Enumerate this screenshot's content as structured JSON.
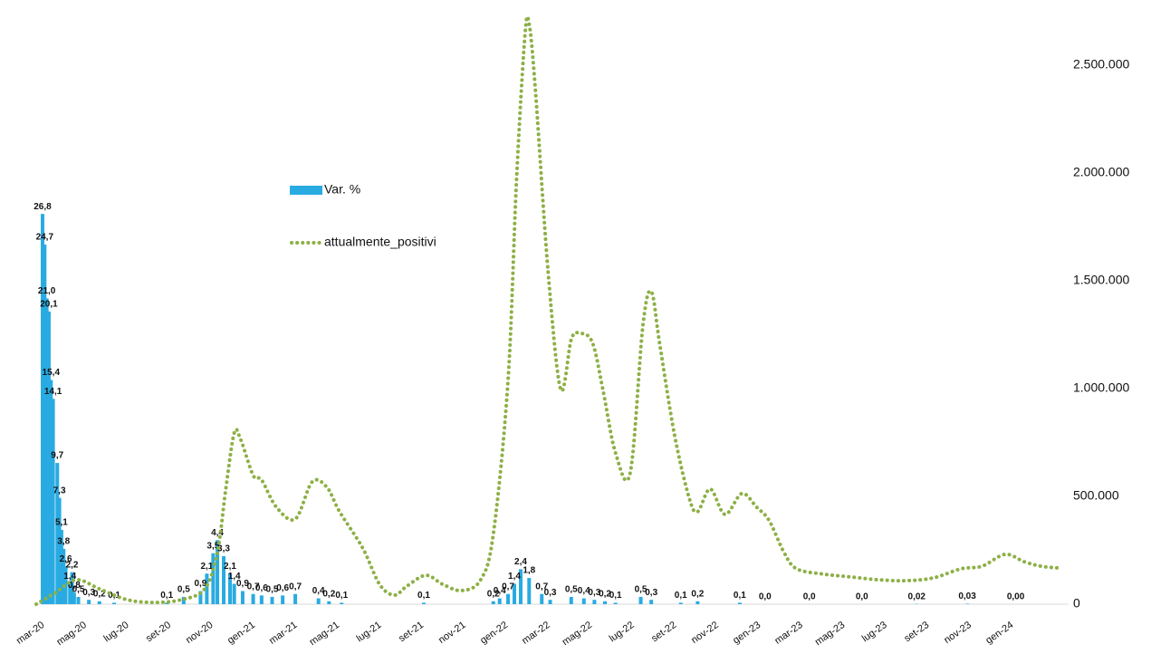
{
  "chart_data": {
    "type": "combo",
    "xlim": [
      0,
      49
    ],
    "xticks": [
      {
        "value": 0,
        "label": "mar-20"
      },
      {
        "value": 2,
        "label": "mag-20"
      },
      {
        "value": 4,
        "label": "lug-20"
      },
      {
        "value": 6,
        "label": "set-20"
      },
      {
        "value": 8,
        "label": "nov-20"
      },
      {
        "value": 10,
        "label": "gen-21"
      },
      {
        "value": 12,
        "label": "mar-21"
      },
      {
        "value": 14,
        "label": "mag-21"
      },
      {
        "value": 16,
        "label": "lug-21"
      },
      {
        "value": 18,
        "label": "set-21"
      },
      {
        "value": 20,
        "label": "nov-21"
      },
      {
        "value": 22,
        "label": "gen-22"
      },
      {
        "value": 24,
        "label": "mar-22"
      },
      {
        "value": 26,
        "label": "mag-22"
      },
      {
        "value": 28,
        "label": "lug-22"
      },
      {
        "value": 30,
        "label": "set-22"
      },
      {
        "value": 32,
        "label": "nov-22"
      },
      {
        "value": 34,
        "label": "gen-23"
      },
      {
        "value": 36,
        "label": "mar-23"
      },
      {
        "value": 38,
        "label": "mag-23"
      },
      {
        "value": 40,
        "label": "lug-23"
      },
      {
        "value": 42,
        "label": "set-23"
      },
      {
        "value": 44,
        "label": "nov-23"
      },
      {
        "value": 46,
        "label": "gen-24"
      }
    ],
    "ylim": [
      0,
      40
    ],
    "y2lim": [
      0,
      2700000
    ],
    "y2ticks": [
      0,
      {
        "value": 500000,
        "label": "500.000"
      },
      {
        "value": 1000000,
        "label": "1.000.000"
      },
      {
        "value": 1500000,
        "label": "1.500.000"
      },
      {
        "value": 2000000,
        "label": "2.000.000"
      },
      {
        "value": 2500000,
        "label": "2.500.000"
      }
    ],
    "series": [
      {
        "name": "Var. %",
        "type": "bar",
        "color": "#29abe2",
        "label_color": "#e00000",
        "x": [
          0.3,
          0.4,
          0.5,
          0.6,
          0.7,
          0.8,
          1.0,
          1.1,
          1.2,
          1.3,
          1.4,
          1.7,
          1.6,
          1.8,
          2.0,
          2.5,
          3.0,
          3.7,
          6.2,
          7.0,
          7.8,
          8.1,
          8.4,
          8.6,
          8.9,
          9.2,
          9.4,
          9.8,
          10.3,
          10.7,
          11.2,
          11.7,
          12.3,
          13.4,
          13.9,
          14.5,
          18.4,
          21.7,
          22.0,
          22.4,
          22.7,
          23.0,
          23.4,
          24.0,
          24.4,
          25.4,
          26.0,
          26.5,
          27.0,
          27.5,
          28.7,
          29.2,
          30.6,
          31.4,
          33.4,
          34.6,
          36.7,
          39.2,
          41.8,
          44.2,
          46.5
        ],
        "values": [
          26.8,
          24.7,
          21.0,
          20.1,
          15.4,
          14.1,
          9.7,
          7.3,
          5.1,
          3.8,
          2.6,
          2.2,
          1.4,
          0.8,
          0.5,
          0.3,
          0.2,
          0.1,
          0.1,
          0.5,
          0.9,
          2.1,
          3.5,
          4.4,
          3.3,
          2.1,
          1.4,
          0.9,
          0.7,
          0.6,
          0.5,
          0.6,
          0.7,
          0.4,
          0.2,
          0.1,
          0.1,
          0.2,
          0.4,
          0.7,
          1.4,
          2.4,
          1.8,
          0.7,
          0.3,
          0.5,
          0.4,
          0.3,
          0.2,
          0.1,
          0.5,
          0.3,
          0.1,
          0.2,
          0.1,
          0.0,
          0.0,
          0.0,
          0.02,
          0.03,
          0.0
        ],
        "value_labels": [
          "26,8",
          "24,7",
          "21,0",
          "20,1",
          "15,4",
          "14,1",
          "9,7",
          "7,3",
          "5,1",
          "3,8",
          "2,6",
          "2,2",
          "1,4",
          "0,8",
          "0,5",
          "0,3",
          "0,2",
          "0,1",
          "0,1",
          "0,5",
          "0,9",
          "2,1",
          "3,5",
          "4,4",
          "3,3",
          "2,1",
          "1,4",
          "0,9",
          "0,7",
          "0,6",
          "0,5",
          "0,6",
          "0,7",
          "0,4",
          "0,2",
          "0,1",
          "0,1",
          "0,2",
          "0,4",
          "0,7",
          "1,4",
          "2,4",
          "1,8",
          "0,7",
          "0,3",
          "0,5",
          "0,4",
          "0,3",
          "0,2",
          "0,1",
          "0,5",
          "0,3",
          "0,1",
          "0,2",
          "0,1",
          "0,0",
          "0,0",
          "0,0",
          "0,02",
          "0,03",
          "0,00"
        ]
      },
      {
        "name": "attualmente_positivi",
        "type": "line",
        "axis": "y2",
        "color": "#8db045",
        "dash": "dotted",
        "x": [
          0,
          0.86,
          1.9,
          3.0,
          4.3,
          5.6,
          6.9,
          8.0,
          8.6,
          9.0,
          9.4,
          9.7,
          10.3,
          10.7,
          11.4,
          12.3,
          13.1,
          13.8,
          14.4,
          15.5,
          16.3,
          17.0,
          17.6,
          18.5,
          19.3,
          20.2,
          21.1,
          21.7,
          22.4,
          22.8,
          23.2,
          23.4,
          23.7,
          24.3,
          24.9,
          25.4,
          25.8,
          26.4,
          26.9,
          27.5,
          28.2,
          28.8,
          29.2,
          29.6,
          30.3,
          31.0,
          31.4,
          32.0,
          32.7,
          33.5,
          34.2,
          34.8,
          35.5,
          36.1,
          37.4,
          38.7,
          40.0,
          41.3,
          42.6,
          43.9,
          44.9,
          46.0,
          46.9,
          47.7,
          48.5
        ],
        "values": [
          0,
          50000,
          113000,
          71000,
          21000,
          8000,
          21000,
          71000,
          240000,
          534000,
          794000,
          765000,
          597000,
          576000,
          450000,
          395000,
          567000,
          542000,
          429000,
          260000,
          92000,
          42000,
          84000,
          134000,
          92000,
          63000,
          113000,
          324000,
          1038000,
          1962000,
          2634000,
          2690000,
          2382000,
          1542000,
          996000,
          1227000,
          1256000,
          1214000,
          996000,
          702000,
          609000,
          1290000,
          1450000,
          1206000,
          786000,
          492000,
          429000,
          534000,
          416000,
          513000,
          450000,
          387000,
          240000,
          164000,
          139000,
          126000,
          113000,
          109000,
          122000,
          164000,
          176000,
          231000,
          197000,
          176000,
          168000
        ]
      }
    ]
  }
}
